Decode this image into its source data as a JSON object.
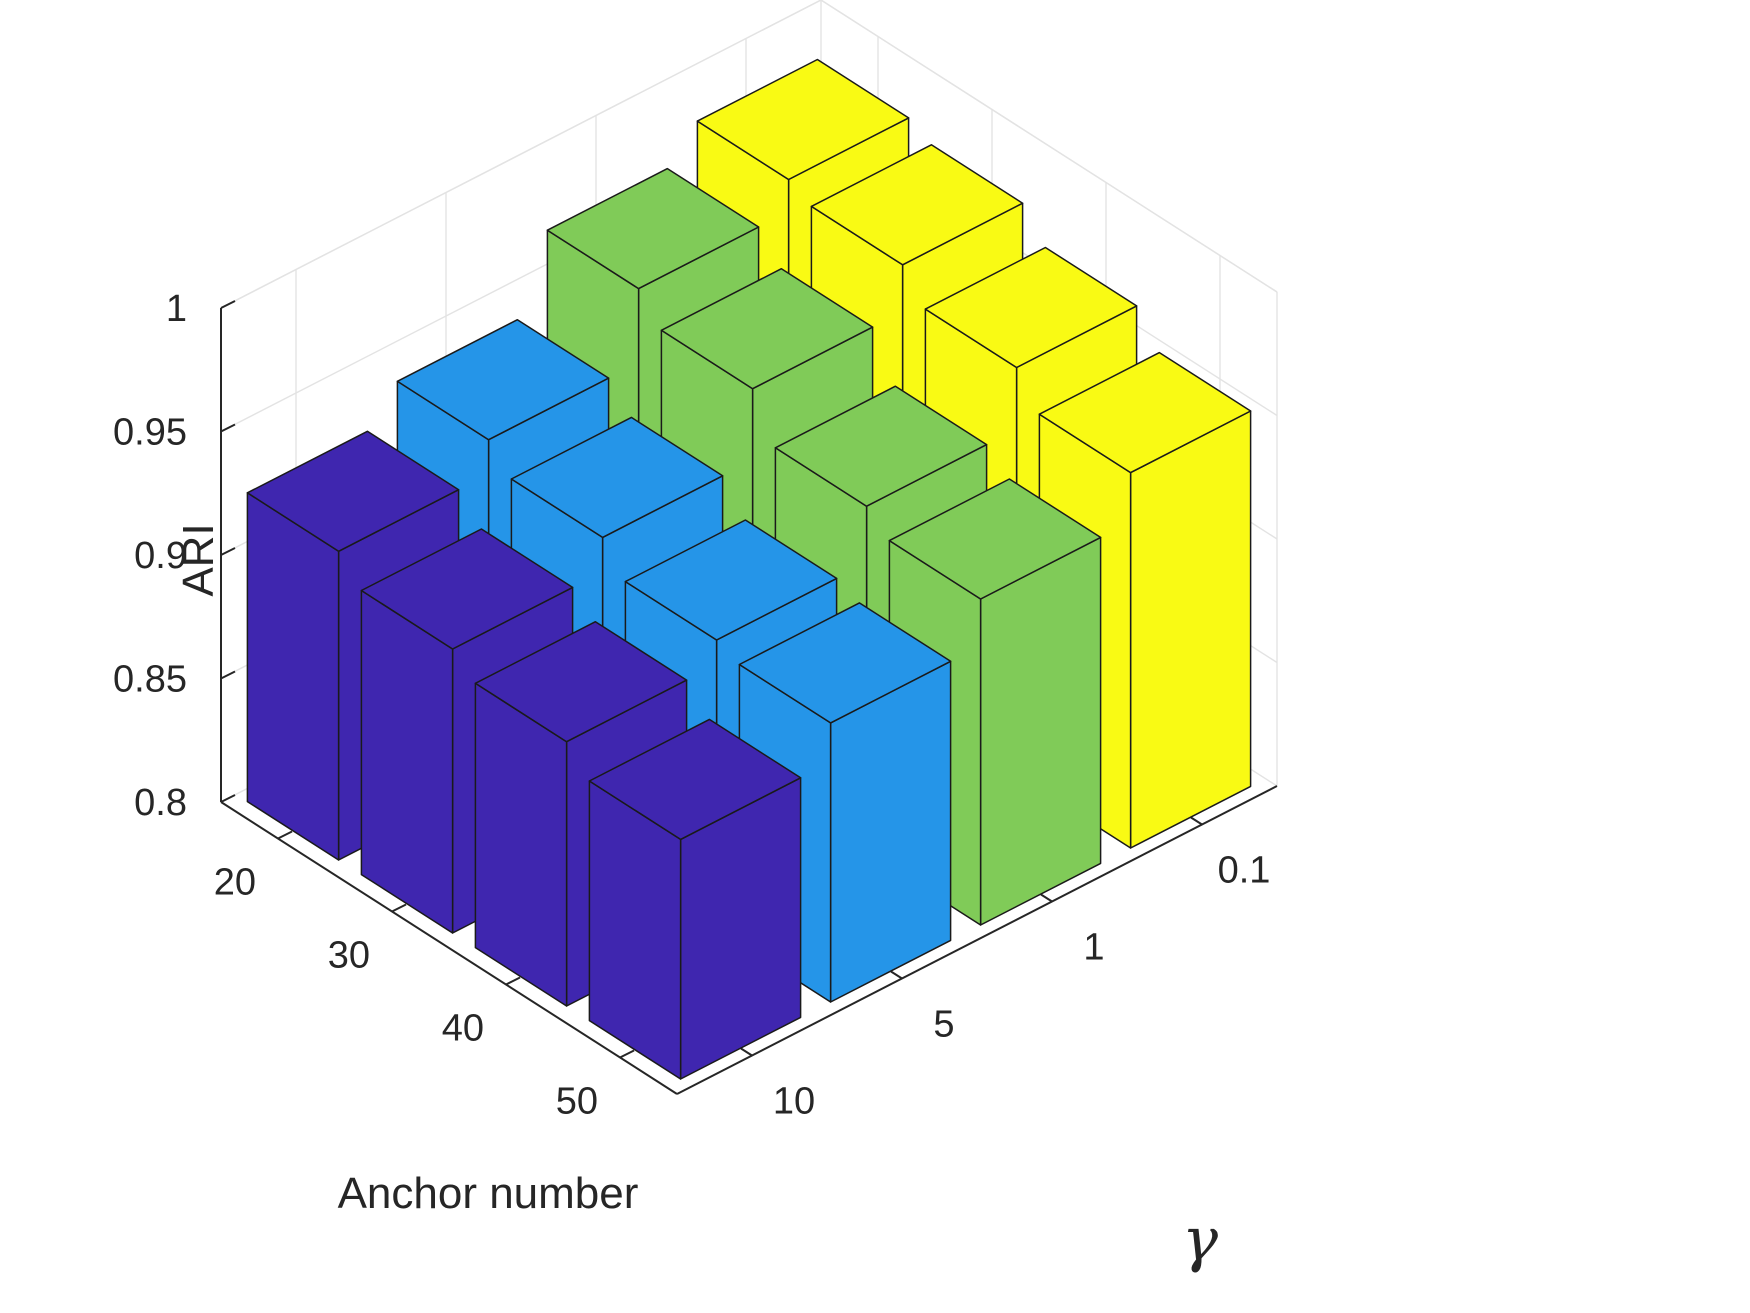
{
  "chart_data": {
    "type": "bar3d",
    "title": "",
    "zlabel": "ARI",
    "anchor_label": "Anchor number",
    "gamma_label": "γ",
    "zlim": [
      0.8,
      1.0
    ],
    "z_ticks": [
      "0.8",
      "0.85",
      "0.9",
      "0.95",
      "1"
    ],
    "anchor_ticks": [
      "20",
      "30",
      "40",
      "50"
    ],
    "gamma_ticks": [
      "10",
      "5",
      "1",
      "0.1"
    ],
    "grid": true,
    "colors": [
      "#3F26AF",
      "#2595E8",
      "#80CB58",
      "#F9FA14"
    ],
    "series": [
      {
        "gamma": "10",
        "values": [
          0.925,
          0.915,
          0.907,
          0.897
        ]
      },
      {
        "gamma": "5",
        "values": [
          0.939,
          0.929,
          0.917,
          0.913
        ]
      },
      {
        "gamma": "1",
        "values": [
          0.969,
          0.958,
          0.94,
          0.932
        ]
      },
      {
        "gamma": "0.1",
        "values": [
          0.982,
          0.977,
          0.965,
          0.952
        ]
      }
    ]
  }
}
